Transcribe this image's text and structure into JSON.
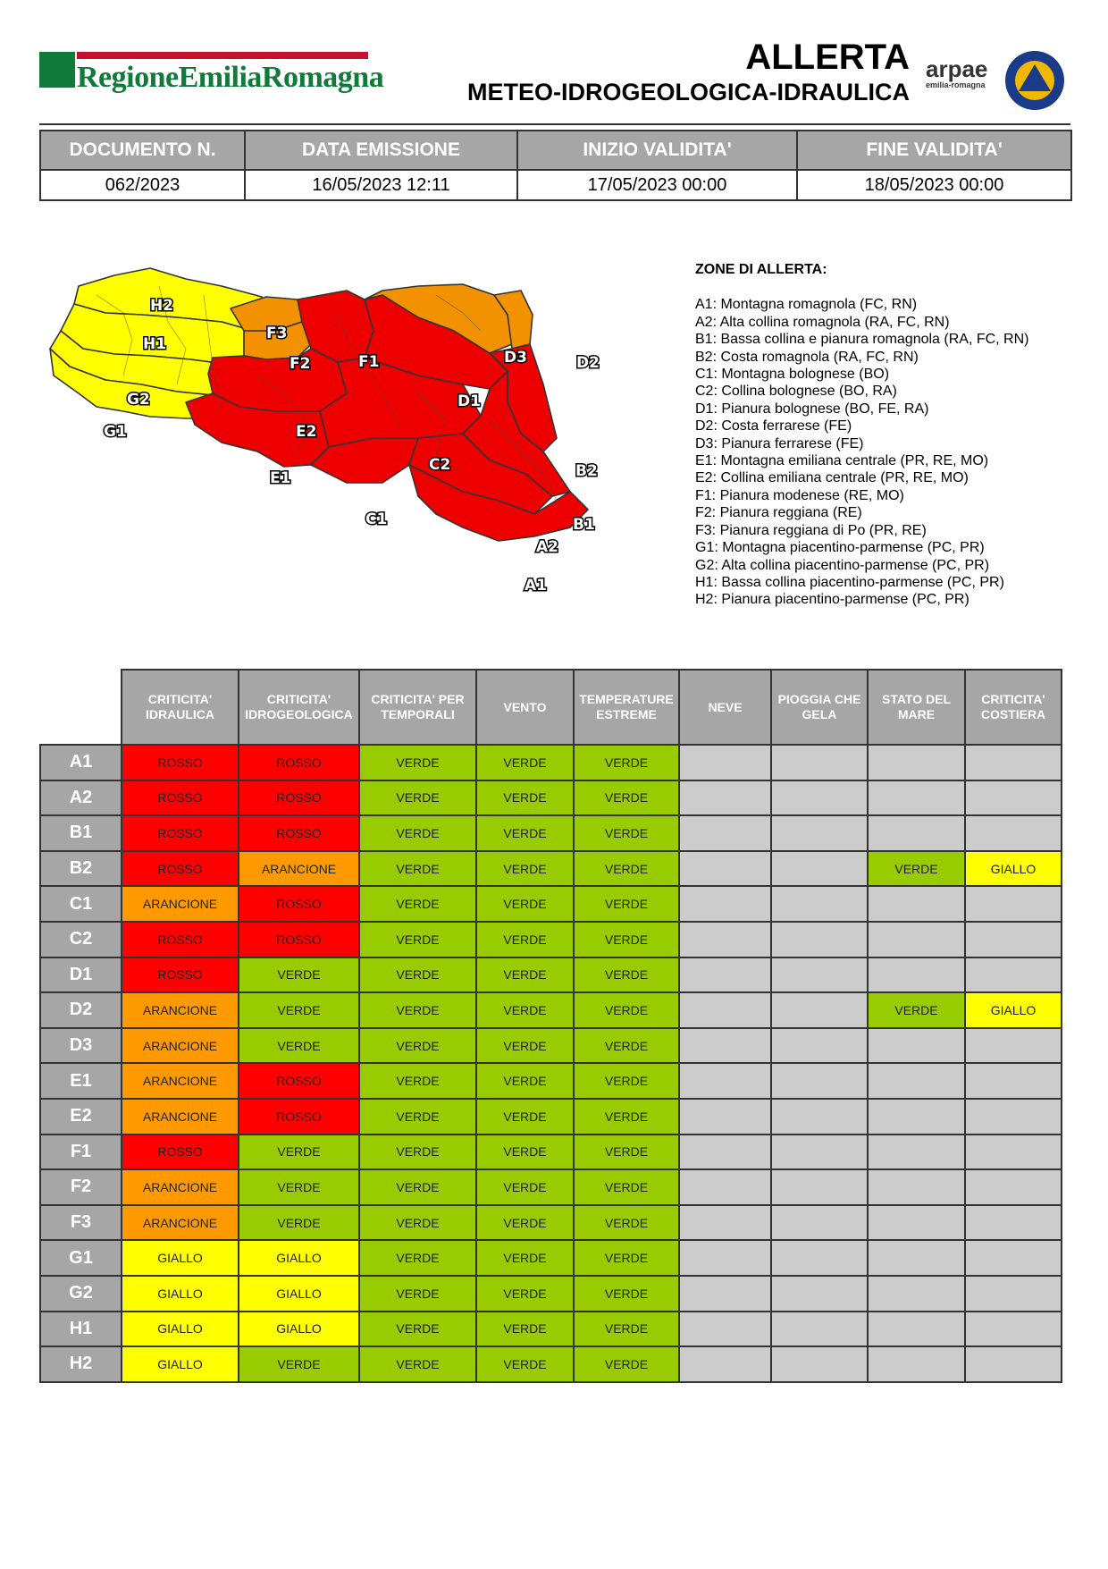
{
  "header": {
    "brand": "RegioneEmiliaRomagna",
    "title": "ALLERTA",
    "subtitle": "METEO-IDROGEOLOGICA-IDRAULICA",
    "arpae_logo_text": "arpae",
    "arpae_logo_sub": "emilia-romagna",
    "pc_logo_text": "SICUREZZA TERRITORIALE PROTEZIONE CIVILE"
  },
  "document": {
    "headers": [
      "DOCUMENTO N.",
      "DATA EMISSIONE",
      "INIZIO VALIDITA'",
      "FINE VALIDITA'"
    ],
    "values": [
      "062/2023",
      "16/05/2023 12:11",
      "17/05/2023 00:00",
      "18/05/2023 00:00"
    ]
  },
  "map": {
    "labels": [
      "H2",
      "H1",
      "G2",
      "G1",
      "F3",
      "F2",
      "F1",
      "E2",
      "E1",
      "C2",
      "C1",
      "D1",
      "D3",
      "D2",
      "B2",
      "B1",
      "A2",
      "A1"
    ]
  },
  "legend": {
    "title": "ZONE DI ALLERTA:",
    "items": [
      "A1: Montagna romagnola (FC, RN)",
      "A2: Alta collina romagnola (RA, FC, RN)",
      "B1: Bassa collina e pianura romagnola (RA, FC, RN)",
      "B2: Costa romagnola (RA, FC, RN)",
      "C1: Montagna bolognese (BO)",
      "C2: Collina bolognese (BO, RA)",
      "D1: Pianura bolognese (BO, FE, RA)",
      "D2: Costa ferrarese (FE)",
      "D3: Pianura ferrarese (FE)",
      "E1: Montagna emiliana centrale (PR, RE, MO)",
      "E2: Collina emiliana centrale (PR, RE, MO)",
      "F1: Pianura modenese (RE, MO)",
      "F2: Pianura reggiana (RE)",
      "F3: Pianura reggiana di Po (PR, RE)",
      "G1: Montagna piacentino-parmense (PC, PR)",
      "G2: Alta collina piacentino-parmense (PC, PR)",
      "H1: Bassa collina piacentino-parmense (PC, PR)",
      "H2: Pianura piacentino-parmense (PC, PR)"
    ]
  },
  "colors": {
    "ROSSO": "#ff0000",
    "ARANCIONE": "#ff9900",
    "VERDE": "#99cc00",
    "GIALLO": "#ffff00",
    "empty": "#cccccc",
    "header_grey": "#a6a6a6"
  },
  "table": {
    "headers": [
      "CRITICITA' IDRAULICA",
      "CRITICITA' IDROGEOLOGICA",
      "CRITICITA' PER TEMPORALI",
      "VENTO",
      "TEMPERATURE ESTREME",
      "NEVE",
      "PIOGGIA CHE GELA",
      "STATO DEL MARE",
      "CRITICITA' COSTIERA"
    ],
    "rows": [
      {
        "zone": "A1",
        "values": [
          "ROSSO",
          "ROSSO",
          "VERDE",
          "VERDE",
          "VERDE",
          "",
          "",
          "",
          ""
        ]
      },
      {
        "zone": "A2",
        "values": [
          "ROSSO",
          "ROSSO",
          "VERDE",
          "VERDE",
          "VERDE",
          "",
          "",
          "",
          ""
        ]
      },
      {
        "zone": "B1",
        "values": [
          "ROSSO",
          "ROSSO",
          "VERDE",
          "VERDE",
          "VERDE",
          "",
          "",
          "",
          ""
        ]
      },
      {
        "zone": "B2",
        "values": [
          "ROSSO",
          "ARANCIONE",
          "VERDE",
          "VERDE",
          "VERDE",
          "",
          "",
          "VERDE",
          "GIALLO"
        ]
      },
      {
        "zone": "C1",
        "values": [
          "ARANCIONE",
          "ROSSO",
          "VERDE",
          "VERDE",
          "VERDE",
          "",
          "",
          "",
          ""
        ]
      },
      {
        "zone": "C2",
        "values": [
          "ROSSO",
          "ROSSO",
          "VERDE",
          "VERDE",
          "VERDE",
          "",
          "",
          "",
          ""
        ]
      },
      {
        "zone": "D1",
        "values": [
          "ROSSO",
          "VERDE",
          "VERDE",
          "VERDE",
          "VERDE",
          "",
          "",
          "",
          ""
        ]
      },
      {
        "zone": "D2",
        "values": [
          "ARANCIONE",
          "VERDE",
          "VERDE",
          "VERDE",
          "VERDE",
          "",
          "",
          "VERDE",
          "GIALLO"
        ]
      },
      {
        "zone": "D3",
        "values": [
          "ARANCIONE",
          "VERDE",
          "VERDE",
          "VERDE",
          "VERDE",
          "",
          "",
          "",
          ""
        ]
      },
      {
        "zone": "E1",
        "values": [
          "ARANCIONE",
          "ROSSO",
          "VERDE",
          "VERDE",
          "VERDE",
          "",
          "",
          "",
          ""
        ]
      },
      {
        "zone": "E2",
        "values": [
          "ARANCIONE",
          "ROSSO",
          "VERDE",
          "VERDE",
          "VERDE",
          "",
          "",
          "",
          ""
        ]
      },
      {
        "zone": "F1",
        "values": [
          "ROSSO",
          "VERDE",
          "VERDE",
          "VERDE",
          "VERDE",
          "",
          "",
          "",
          ""
        ]
      },
      {
        "zone": "F2",
        "values": [
          "ARANCIONE",
          "VERDE",
          "VERDE",
          "VERDE",
          "VERDE",
          "",
          "",
          "",
          ""
        ]
      },
      {
        "zone": "F3",
        "values": [
          "ARANCIONE",
          "VERDE",
          "VERDE",
          "VERDE",
          "VERDE",
          "",
          "",
          "",
          ""
        ]
      },
      {
        "zone": "G1",
        "values": [
          "GIALLO",
          "GIALLO",
          "VERDE",
          "VERDE",
          "VERDE",
          "",
          "",
          "",
          ""
        ]
      },
      {
        "zone": "G2",
        "values": [
          "GIALLO",
          "GIALLO",
          "VERDE",
          "VERDE",
          "VERDE",
          "",
          "",
          "",
          ""
        ]
      },
      {
        "zone": "H1",
        "values": [
          "GIALLO",
          "GIALLO",
          "VERDE",
          "VERDE",
          "VERDE",
          "",
          "",
          "",
          ""
        ]
      },
      {
        "zone": "H2",
        "values": [
          "GIALLO",
          "VERDE",
          "VERDE",
          "VERDE",
          "VERDE",
          "",
          "",
          "",
          ""
        ]
      }
    ]
  }
}
